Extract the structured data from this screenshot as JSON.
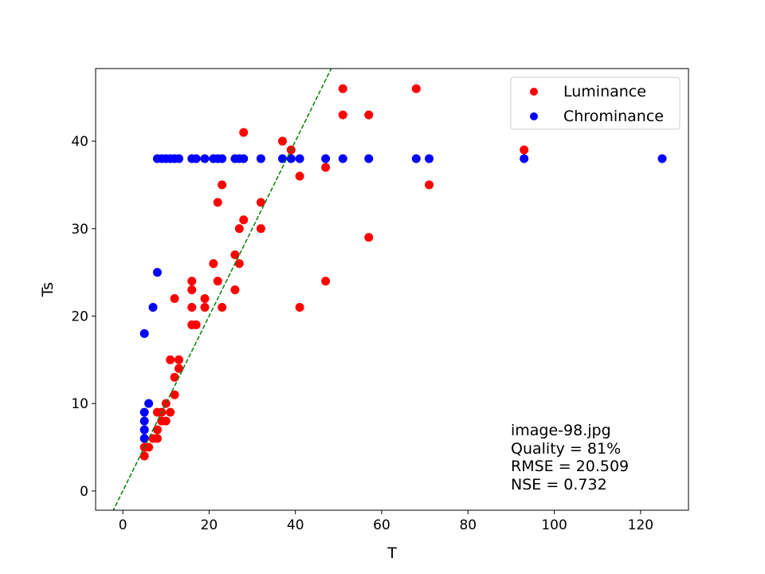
{
  "chart_data": {
    "type": "scatter",
    "title": "",
    "xlabel": "T",
    "ylabel": "Ts",
    "xlim": [
      -6.3,
      131.1
    ],
    "ylim": [
      -2.2,
      48.3
    ],
    "xticks": [
      0,
      20,
      40,
      60,
      80,
      100,
      120
    ],
    "yticks": [
      0,
      10,
      20,
      30,
      40
    ],
    "grid": false,
    "legend_position": "top-right",
    "reference_line": {
      "style": "dashed",
      "color": "#008000",
      "slope": 1,
      "intercept": 0
    },
    "series": [
      {
        "name": "Luminance",
        "color": "#ff0000",
        "points": [
          [
            5,
            4
          ],
          [
            5,
            5
          ],
          [
            6,
            5
          ],
          [
            7,
            6
          ],
          [
            8,
            6
          ],
          [
            8,
            7
          ],
          [
            8,
            9
          ],
          [
            9,
            8
          ],
          [
            9,
            9
          ],
          [
            10,
            8
          ],
          [
            10,
            10
          ],
          [
            11,
            9
          ],
          [
            11,
            15
          ],
          [
            12,
            11
          ],
          [
            12,
            13
          ],
          [
            12,
            22
          ],
          [
            13,
            14
          ],
          [
            13,
            15
          ],
          [
            16,
            19
          ],
          [
            16,
            21
          ],
          [
            16,
            23
          ],
          [
            16,
            24
          ],
          [
            17,
            19
          ],
          [
            19,
            21
          ],
          [
            19,
            22
          ],
          [
            21,
            26
          ],
          [
            22,
            24
          ],
          [
            22,
            33
          ],
          [
            23,
            21
          ],
          [
            23,
            35
          ],
          [
            26,
            23
          ],
          [
            26,
            27
          ],
          [
            27,
            26
          ],
          [
            27,
            30
          ],
          [
            28,
            31
          ],
          [
            28,
            41
          ],
          [
            32,
            30
          ],
          [
            32,
            33
          ],
          [
            37,
            40
          ],
          [
            39,
            39
          ],
          [
            41,
            21
          ],
          [
            41,
            36
          ],
          [
            47,
            24
          ],
          [
            47,
            37
          ],
          [
            51,
            43
          ],
          [
            51,
            46
          ],
          [
            57,
            29
          ],
          [
            57,
            43
          ],
          [
            68,
            46
          ],
          [
            71,
            35
          ],
          [
            93,
            39
          ]
        ]
      },
      {
        "name": "Chrominance",
        "color": "#0000ff",
        "points": [
          [
            5,
            6
          ],
          [
            5,
            7
          ],
          [
            5,
            8
          ],
          [
            5,
            9
          ],
          [
            5,
            18
          ],
          [
            6,
            10
          ],
          [
            7,
            21
          ],
          [
            8,
            25
          ],
          [
            8,
            38
          ],
          [
            9,
            38
          ],
          [
            10,
            38
          ],
          [
            11,
            38
          ],
          [
            12,
            38
          ],
          [
            13,
            38
          ],
          [
            16,
            38
          ],
          [
            17,
            38
          ],
          [
            19,
            38
          ],
          [
            21,
            38
          ],
          [
            22,
            38
          ],
          [
            23,
            38
          ],
          [
            26,
            38
          ],
          [
            27,
            38
          ],
          [
            28,
            38
          ],
          [
            32,
            38
          ],
          [
            37,
            38
          ],
          [
            39,
            38
          ],
          [
            41,
            38
          ],
          [
            47,
            38
          ],
          [
            51,
            38
          ],
          [
            57,
            38
          ],
          [
            68,
            38
          ],
          [
            71,
            38
          ],
          [
            93,
            38
          ],
          [
            125,
            38
          ]
        ]
      }
    ],
    "annotations": [
      "image-98.jpg",
      "Quality = 81%",
      "RMSE = 20.509",
      "NSE = 0.732"
    ]
  }
}
